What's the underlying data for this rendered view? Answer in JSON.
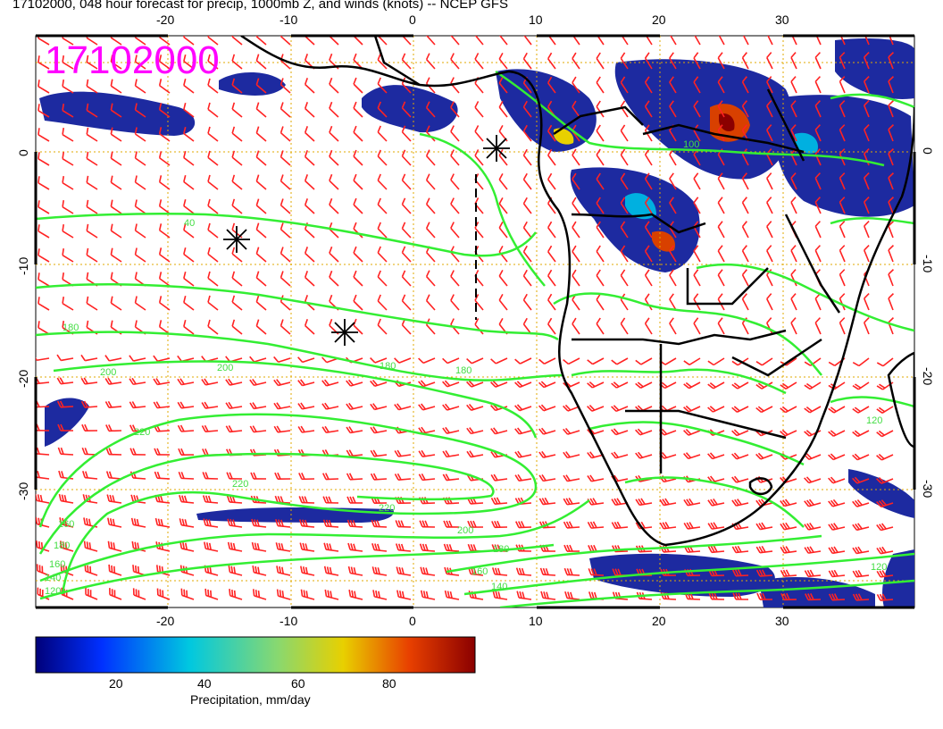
{
  "title": "17102000, 048 hour forecast for precip, 1000mb Z, and winds (knots) -- NCEP GFS",
  "date_stamp": "17102000",
  "date_stamp_color": "#ff00ff",
  "map": {
    "lon_range": [
      -30,
      41
    ],
    "lat_range": [
      -40,
      12
    ],
    "lon_ticks": [
      "-20",
      "-10",
      "0",
      "10",
      "20",
      "30"
    ],
    "lat_ticks": [
      "0",
      "-10",
      "-20",
      "-30"
    ],
    "grid": true,
    "grid_color": "#e0a800",
    "contour_color": "#33ee33",
    "wind_barb_color": "#ff2222",
    "coastline_color": "#000000",
    "contour_labels": [
      "40",
      "180",
      "200",
      "220",
      "220",
      "200",
      "180",
      "180",
      "160",
      "140",
      "120",
      "120",
      "100",
      "160",
      "180",
      "200",
      "180",
      "160",
      "140",
      "120",
      "220"
    ]
  },
  "colorbar": {
    "label": "Precipitation, mm/day",
    "ticks": [
      "20",
      "40",
      "60",
      "80"
    ],
    "range": [
      0,
      100
    ],
    "colors": [
      "#00007a",
      "#0030ff",
      "#00c8e0",
      "#88d870",
      "#e8d000",
      "#e84000",
      "#8b0000"
    ]
  }
}
